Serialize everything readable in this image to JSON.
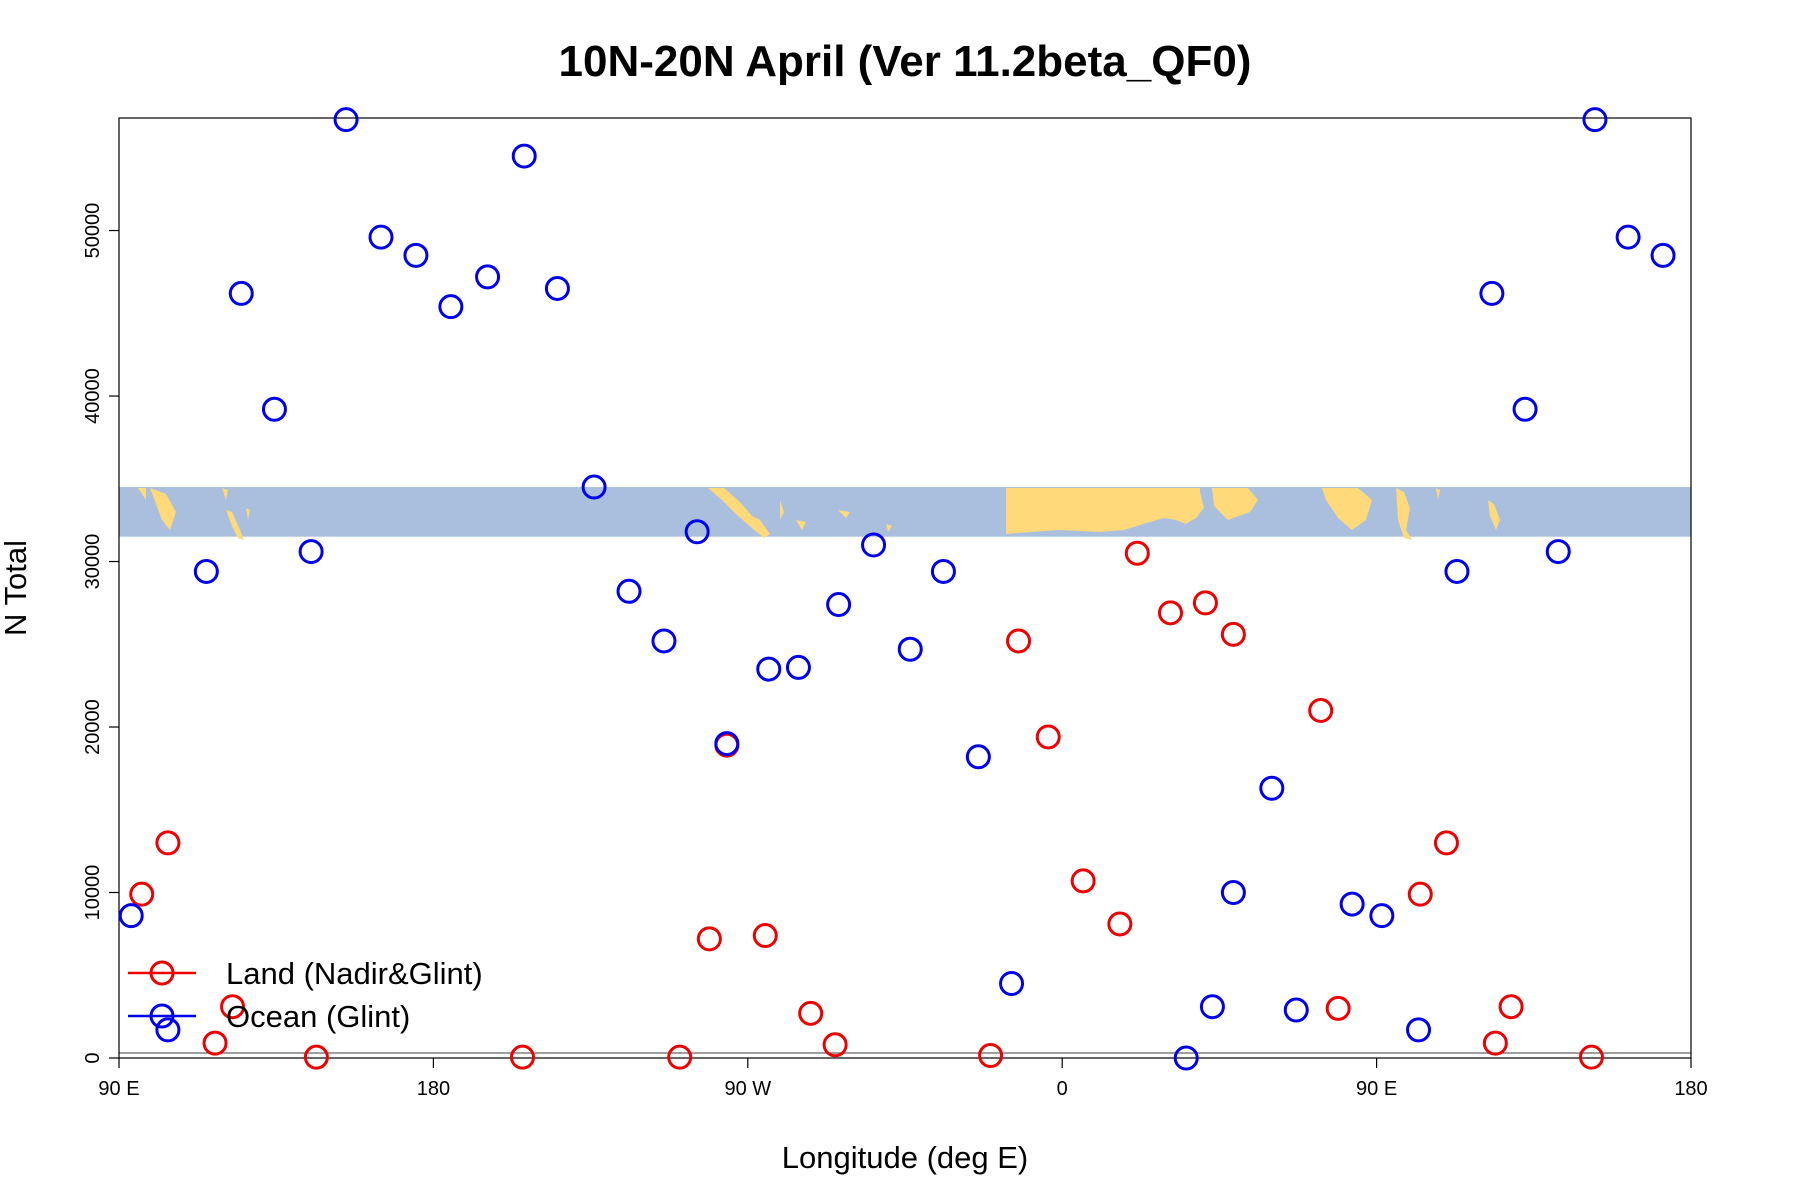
{
  "chart_data": {
    "type": "scatter",
    "title": "10N-20N April (Ver 11.2beta_QF0)",
    "xlabel": "Longitude (deg E)",
    "ylabel": "N Total",
    "xlim": [
      90,
      540
    ],
    "ylim": [
      0,
      56800
    ],
    "x_ticks": [
      {
        "value": 90,
        "label": "90 E"
      },
      {
        "value": 180,
        "label": "180"
      },
      {
        "value": 270,
        "label": "90 W"
      },
      {
        "value": 360,
        "label": "0"
      },
      {
        "value": 450,
        "label": "90 E"
      },
      {
        "value": 540,
        "label": "180"
      }
    ],
    "y_ticks": [
      0,
      10000,
      20000,
      30000,
      40000,
      50000
    ],
    "reference_line_y": 300,
    "map_band": {
      "y_range": [
        31500,
        34500
      ],
      "ocean_color": "#a9bfdd",
      "land_color": "#ffd97a"
    },
    "legend": {
      "position": "bottom-left"
    },
    "series": [
      {
        "name": "Land (Nadir&Glint)",
        "color": "#ee0000",
        "points": [
          [
            96.5,
            9900
          ],
          [
            104,
            13000
          ],
          [
            117.5,
            900
          ],
          [
            122.5,
            3100
          ],
          [
            146.5,
            50
          ],
          [
            205.5,
            50
          ],
          [
            250.5,
            50
          ],
          [
            259,
            7200
          ],
          [
            264,
            18900
          ],
          [
            275,
            7400
          ],
          [
            288,
            2700
          ],
          [
            295,
            800
          ],
          [
            339.5,
            150
          ],
          [
            347.5,
            25200
          ],
          [
            356,
            19400
          ],
          [
            366,
            10700
          ],
          [
            376.5,
            8100
          ],
          [
            381.5,
            30500
          ],
          [
            391,
            26900
          ],
          [
            401,
            27500
          ],
          [
            409,
            25600
          ],
          [
            434,
            21000
          ],
          [
            439,
            3000
          ],
          [
            462.5,
            9900
          ],
          [
            470,
            13000
          ],
          [
            484,
            900
          ],
          [
            488.5,
            3100
          ],
          [
            511.5,
            50
          ]
        ]
      },
      {
        "name": "Ocean (Glint)",
        "color": "#0000ee",
        "points": [
          [
            93.5,
            8600
          ],
          [
            104,
            1700
          ],
          [
            115,
            29400
          ],
          [
            125,
            46200
          ],
          [
            134.5,
            39200
          ],
          [
            145,
            30600
          ],
          [
            155,
            56700
          ],
          [
            165,
            49600
          ],
          [
            175,
            48500
          ],
          [
            185,
            45400
          ],
          [
            195.5,
            47200
          ],
          [
            206,
            54500
          ],
          [
            215.5,
            46500
          ],
          [
            226,
            34500
          ],
          [
            236,
            28200
          ],
          [
            246,
            25200
          ],
          [
            255.5,
            31800
          ],
          [
            264,
            19000
          ],
          [
            276,
            23500
          ],
          [
            284.5,
            23600
          ],
          [
            296,
            27400
          ],
          [
            306,
            31000
          ],
          [
            316.5,
            24700
          ],
          [
            326,
            29400
          ],
          [
            336,
            18200
          ],
          [
            345.5,
            4500
          ],
          [
            395.5,
            0
          ],
          [
            409,
            10000
          ],
          [
            403,
            3100
          ],
          [
            420,
            16300
          ],
          [
            427,
            2900
          ],
          [
            443,
            9300
          ],
          [
            451.5,
            8600
          ],
          [
            462,
            1700
          ],
          [
            473,
            29400
          ],
          [
            483,
            46200
          ],
          [
            492.5,
            39200
          ],
          [
            502,
            30600
          ],
          [
            512.5,
            56700
          ],
          [
            522,
            49600
          ],
          [
            532,
            48500
          ]
        ]
      }
    ]
  }
}
